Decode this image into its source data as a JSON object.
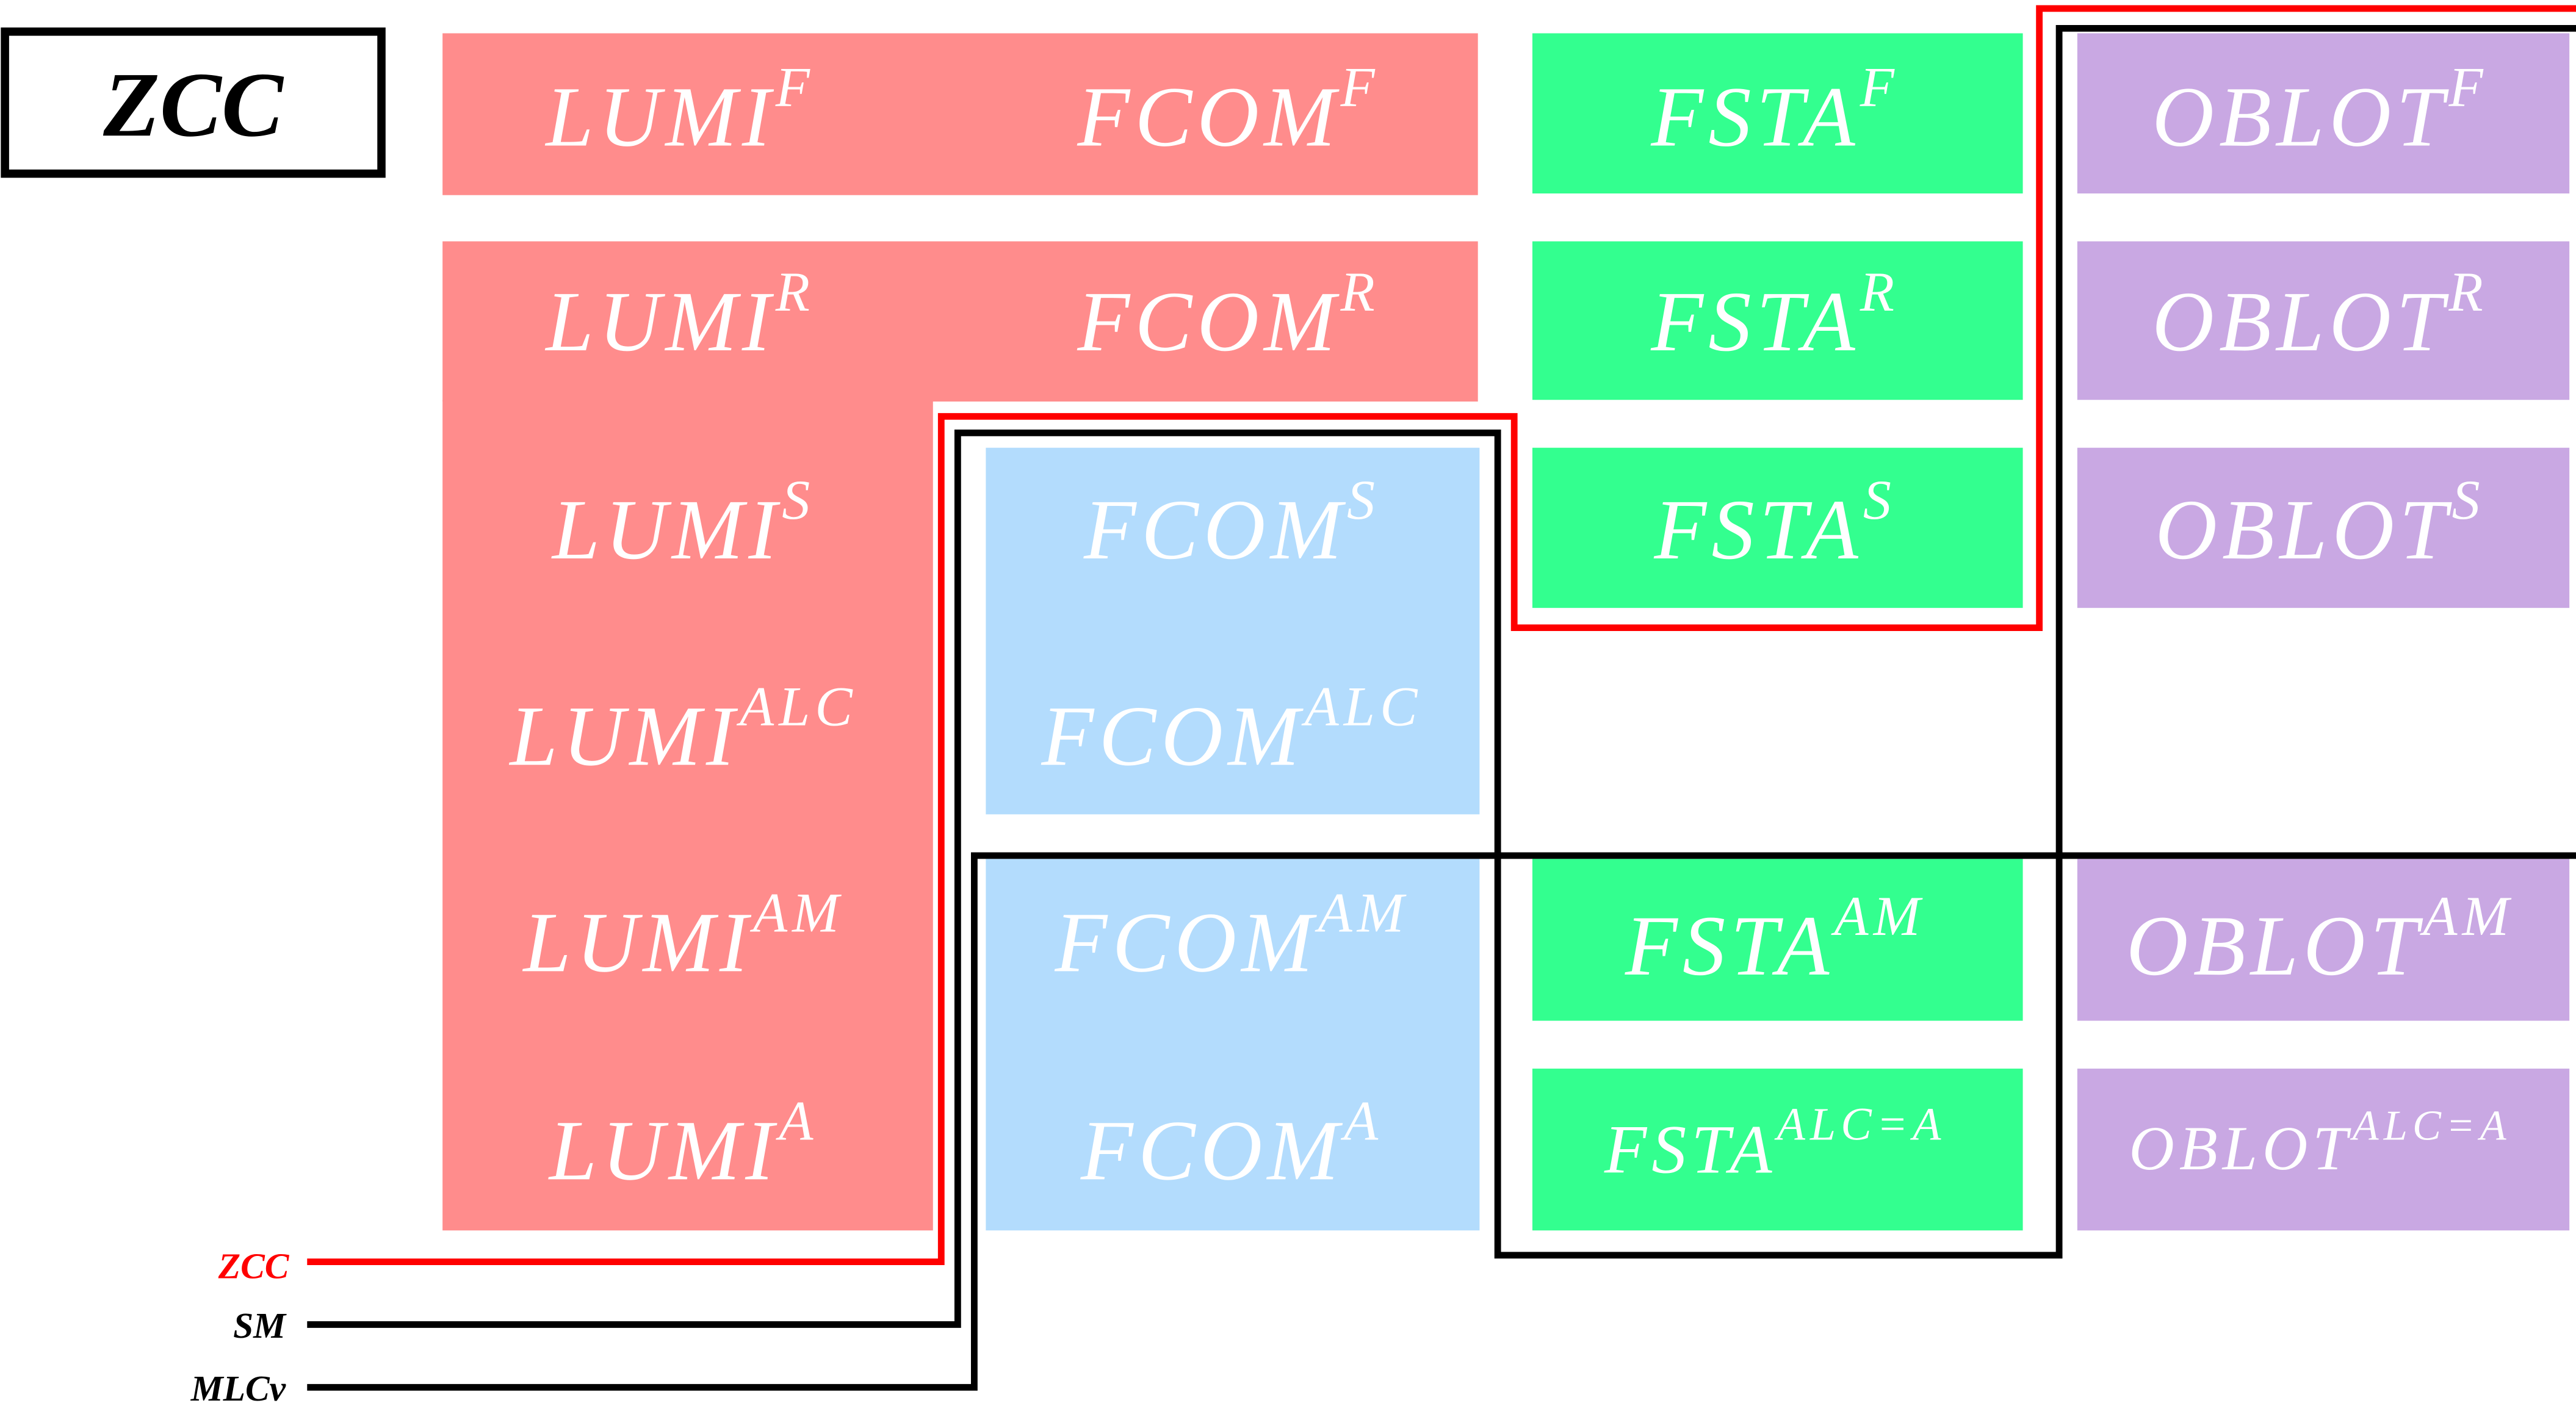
{
  "title": "ZCC",
  "colors": {
    "lumi": "#ff8c8c",
    "fcom_top": "#ff8c8c",
    "fcom": "#b3dcfd",
    "fsta": "#33ff8f",
    "oblot": "#c9a8e3",
    "zcc_line": "#ff0000",
    "sm_line": "#000000",
    "mlcv_line": "#000000"
  },
  "legend": [
    {
      "label": "ZCC",
      "color": "#ff0000"
    },
    {
      "label": "SM",
      "color": "#000000"
    },
    {
      "label": "MLCv",
      "color": "#000000"
    }
  ],
  "cells": {
    "lumi": [
      {
        "base": "LUMI",
        "sup": "F"
      },
      {
        "base": "LUMI",
        "sup": "R"
      },
      {
        "base": "LUMI",
        "sup": "S"
      },
      {
        "base": "LUMI",
        "sup": "ALC"
      },
      {
        "base": "LUMI",
        "sup": "AM"
      },
      {
        "base": "LUMI",
        "sup": "A"
      }
    ],
    "fcom": [
      {
        "base": "FCOM",
        "sup": "F"
      },
      {
        "base": "FCOM",
        "sup": "R"
      },
      {
        "base": "FCOM",
        "sup": "S"
      },
      {
        "base": "FCOM",
        "sup": "ALC"
      },
      {
        "base": "FCOM",
        "sup": "AM"
      },
      {
        "base": "FCOM",
        "sup": "A"
      }
    ],
    "fsta": [
      {
        "base": "FSTA",
        "sup": "F"
      },
      {
        "base": "FSTA",
        "sup": "R"
      },
      {
        "base": "FSTA",
        "sup": "S"
      },
      {
        "base": "FSTA",
        "sup": "AM"
      },
      {
        "base": "FSTA",
        "sup": "ALC=A"
      }
    ],
    "oblot": [
      {
        "base": "OBLOT",
        "sup": "F"
      },
      {
        "base": "OBLOT",
        "sup": "R"
      },
      {
        "base": "OBLOT",
        "sup": "S"
      },
      {
        "base": "OBLOT",
        "sup": "AM"
      },
      {
        "base": "OBLOT",
        "sup": "ALC=A"
      }
    ]
  }
}
